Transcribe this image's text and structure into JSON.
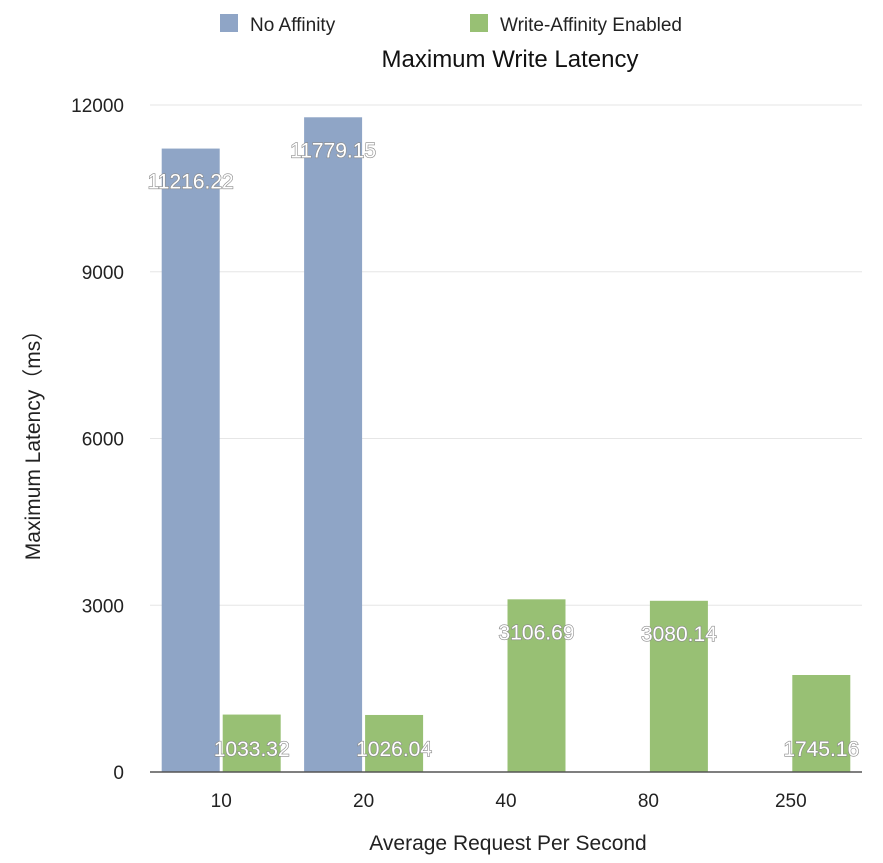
{
  "chart_data": {
    "type": "bar",
    "title": "Maximum Write Latency",
    "xlabel": "Average Request Per Second",
    "ylabel": "Maximum Latency（ms）",
    "categories": [
      "10",
      "20",
      "40",
      "80",
      "250"
    ],
    "series": [
      {
        "name": "No Affinity",
        "color": "#8fa5c6",
        "values": [
          11216.22,
          11779.15,
          null,
          null,
          null
        ],
        "labels": [
          "11216.22",
          "11779.15",
          null,
          null,
          null
        ]
      },
      {
        "name": "Write-Affinity Enabled",
        "color": "#98c074",
        "values": [
          1033.32,
          1026.04,
          3106.69,
          3080.14,
          1745.16
        ],
        "labels": [
          "1033.32",
          "1026.04",
          "3106.69",
          "3080.14",
          "1745.16"
        ]
      }
    ],
    "ylim": [
      0,
      12000
    ],
    "yticks": [
      0,
      3000,
      6000,
      9000,
      12000
    ],
    "ytick_labels": [
      "0",
      "3000",
      "6000",
      "9000",
      "12000"
    ],
    "grid": true,
    "legend_position": "top-center"
  }
}
